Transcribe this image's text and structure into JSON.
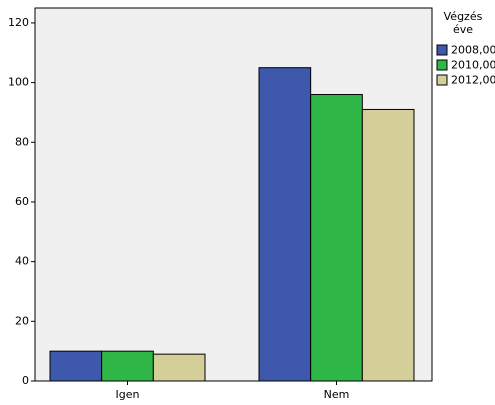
{
  "chart_data": {
    "type": "bar",
    "categories": [
      "Igen",
      "Nem"
    ],
    "series": [
      {
        "name": "2008,00",
        "color": "#3e58ac",
        "values": [
          10,
          105
        ]
      },
      {
        "name": "2010,00",
        "color": "#2fb847",
        "values": [
          10,
          96
        ]
      },
      {
        "name": "2012,00",
        "color": "#d4cf98",
        "values": [
          9,
          91
        ]
      }
    ],
    "legend_title": [
      "Végzés",
      "éve"
    ],
    "ylim": [
      0,
      125
    ],
    "yticks": [
      0,
      20,
      40,
      60,
      80,
      100,
      120
    ]
  }
}
